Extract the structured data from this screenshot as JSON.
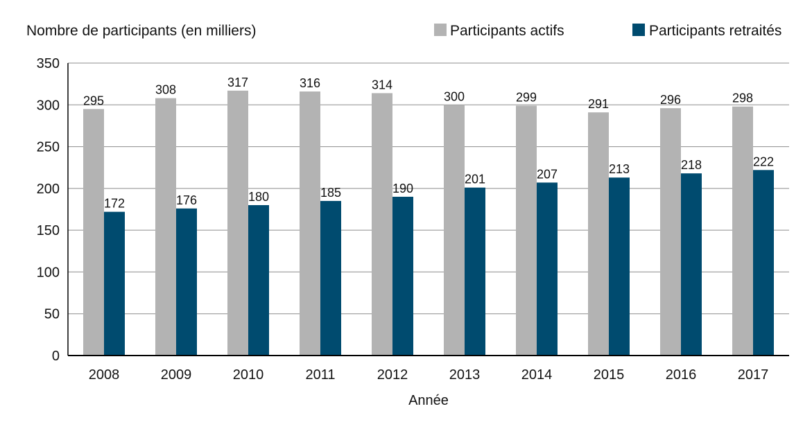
{
  "chart_data": {
    "type": "bar",
    "title": "",
    "ylabel": "Nombre de participants (en milliers)",
    "xlabel": "Année",
    "categories": [
      "2008",
      "2009",
      "2010",
      "2011",
      "2012",
      "2013",
      "2014",
      "2015",
      "2016",
      "2017"
    ],
    "series": [
      {
        "name": "Participants actifs",
        "color": "#b3b3b3",
        "values": [
          295,
          308,
          317,
          316,
          314,
          300,
          299,
          291,
          296,
          298
        ]
      },
      {
        "name": "Participants retraités",
        "color": "#004b6f",
        "values": [
          172,
          176,
          180,
          185,
          190,
          201,
          207,
          213,
          218,
          222
        ]
      }
    ],
    "ylim": [
      0,
      350
    ],
    "yticks": [
      0,
      50,
      100,
      150,
      200,
      250,
      300,
      350
    ],
    "grid": true,
    "legend_position": "top-right"
  }
}
